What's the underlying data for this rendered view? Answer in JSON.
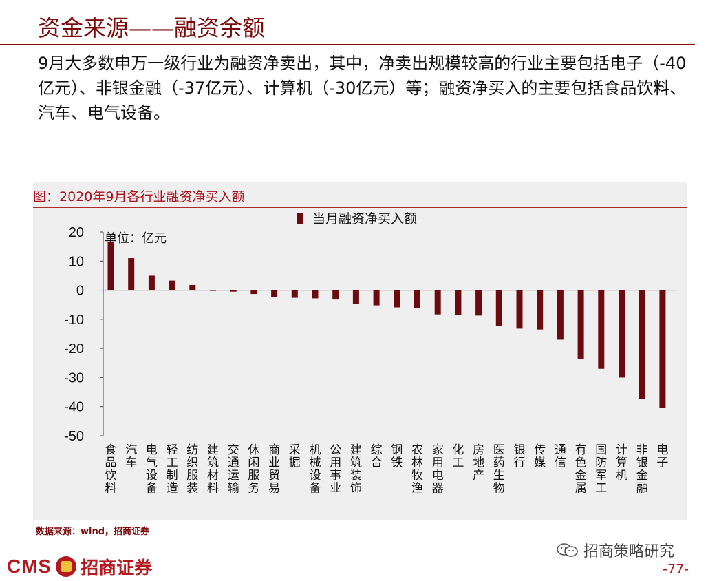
{
  "header": {
    "title": "资金来源——融资余额",
    "paragraph": "9月大多数申万一级行业为融资净卖出，其中，净卖出规模较高的行业主要包括电子（-40亿元）、非银金融（-37亿元）、计算机（-30亿元）等；融资净买入的主要包括食品饮料、汽车、电气设备。"
  },
  "chart_data": {
    "type": "bar",
    "title": "图：2020年9月各行业融资净买入额",
    "unit_label": "单位：亿元",
    "xlabel": "",
    "ylabel": "",
    "ylim": [
      -50,
      20
    ],
    "yticks": [
      20,
      10,
      0,
      -10,
      -20,
      -30,
      -40,
      -50
    ],
    "grid": false,
    "legend_position": "top-center",
    "categories": [
      "食品饮料",
      "汽车",
      "电气设备",
      "轻工制造",
      "纺织服装",
      "建筑材料",
      "交通运输",
      "休闲服务",
      "商业贸易",
      "采掘",
      "机械设备",
      "公用事业",
      "建筑装饰",
      "综合",
      "钢铁",
      "农林牧渔",
      "家用电器",
      "化工",
      "房地产",
      "医药生物",
      "银行",
      "传媒",
      "通信",
      "有色金属",
      "国防军工",
      "计算机",
      "非银金融",
      "电子"
    ],
    "series": [
      {
        "name": "当月融资净买入额",
        "color": "#6b0a0f",
        "values": [
          16.5,
          11,
          5,
          3.3,
          1.8,
          -0.2,
          -0.5,
          -1.3,
          -2.4,
          -2.6,
          -2.8,
          -3.2,
          -4.7,
          -5.2,
          -5.9,
          -6.2,
          -8.3,
          -8.5,
          -8.7,
          -12.4,
          -13.2,
          -13.5,
          -17,
          -23.5,
          -27,
          -30,
          -37.4,
          -40.5
        ]
      }
    ]
  },
  "footer": {
    "source": "数据来源：wind，招商证券",
    "brand_latin": "CMS",
    "brand_cn": "招商证券",
    "wechat_label": "招商策略研究",
    "page": "-77-"
  },
  "colors": {
    "accent": "#7a0a0a",
    "bar": "#6b0a0f",
    "panel": "#efefef"
  }
}
